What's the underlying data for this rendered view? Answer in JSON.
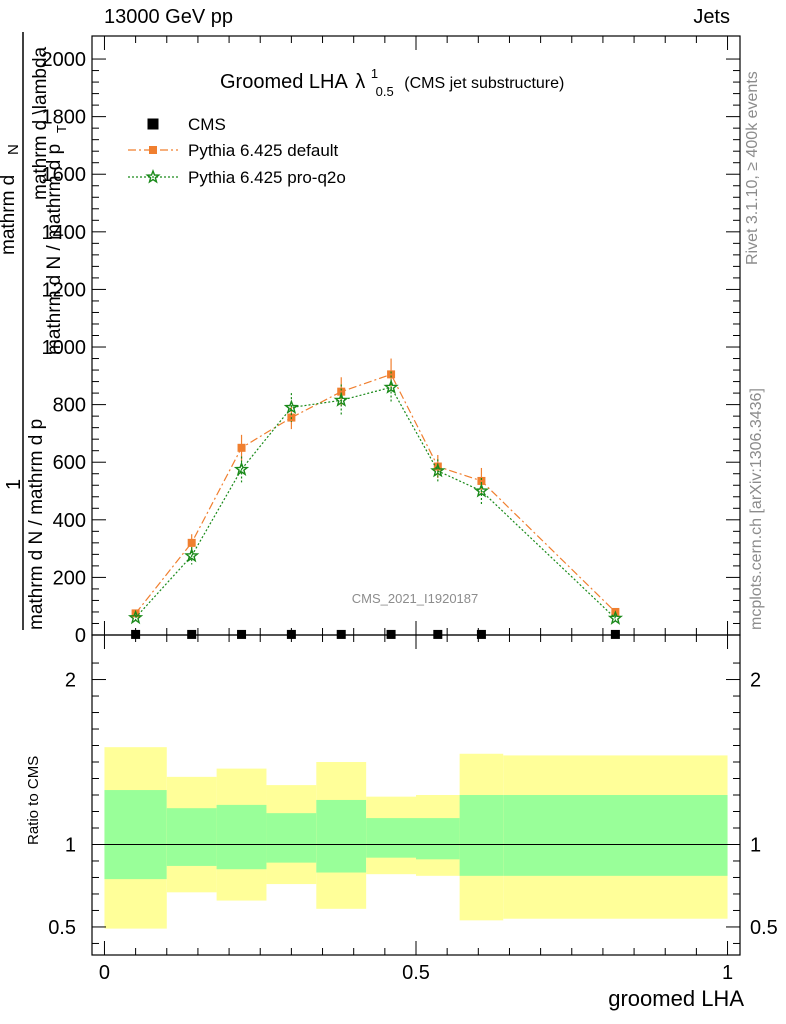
{
  "header": {
    "left": "13000 GeV pp",
    "right": "Jets"
  },
  "side_labels": {
    "rivet": "Rivet 3.1.10, ≥ 400k events",
    "mcplots": "mcplots.cern.ch [arXiv:1306.3436]"
  },
  "chart_data": [
    {
      "type": "scatter",
      "panel": "main",
      "title_main": "Groomed LHA",
      "title_lambda": "λ",
      "title_sup": "1",
      "title_sub": "0.5",
      "title_suffix": "(CMS jet substructure)",
      "watermark": "CMS_2021_I1920187",
      "ylabel_numerator": "1",
      "ylabel_fraction_top": "mathrm d",
      "ylabel_fraction_top2": "N",
      "ylabel_main": "mathrm d N / mathrm d p",
      "ylabel_sub": "T",
      "ylabel_tail": "mathrm d \\lambda",
      "ylabel_denominator": "mathrm d N / mathrm d p",
      "xlim": [
        -0.02,
        1.02
      ],
      "ylim": [
        0,
        2080
      ],
      "yticks": [
        0,
        200,
        400,
        600,
        800,
        1000,
        1200,
        1400,
        1600,
        1800,
        2000
      ],
      "ytick_labels": [
        "0",
        "200",
        "400",
        "600",
        "800",
        "1000",
        "1200",
        "1400",
        "1600",
        "1800",
        "2000"
      ],
      "legend_position": "top-left",
      "series": [
        {
          "name": "CMS",
          "color": "#000000",
          "marker": "square",
          "x": [
            0.05,
            0.14,
            0.22,
            0.3,
            0.38,
            0.46,
            0.535,
            0.605,
            0.82
          ],
          "y": [
            2,
            2,
            2,
            2,
            2,
            2,
            2,
            2,
            2
          ]
        },
        {
          "name": "Pythia 6.425 default",
          "color": "#f07f2f",
          "marker": "square",
          "line": "dashdot",
          "x": [
            0.05,
            0.14,
            0.22,
            0.3,
            0.38,
            0.46,
            0.535,
            0.605,
            0.82
          ],
          "y": [
            75,
            320,
            650,
            755,
            845,
            905,
            585,
            535,
            80
          ],
          "err": [
            10,
            30,
            45,
            40,
            50,
            55,
            40,
            45,
            10
          ]
        },
        {
          "name": "Pythia 6.425 pro-q2o",
          "color": "#1a8a1a",
          "marker": "star",
          "line": "dotted",
          "x": [
            0.05,
            0.14,
            0.22,
            0.3,
            0.38,
            0.46,
            0.535,
            0.605,
            0.82
          ],
          "y": [
            60,
            275,
            575,
            790,
            815,
            860,
            570,
            500,
            58
          ],
          "err": [
            10,
            30,
            45,
            50,
            55,
            55,
            40,
            45,
            10
          ]
        }
      ]
    },
    {
      "type": "area",
      "panel": "ratio",
      "ylabel": "Ratio to CMS",
      "xlabel": "groomed LHA",
      "xlim": [
        -0.02,
        1.02
      ],
      "ylim": [
        0.33,
        2.27
      ],
      "yticks": [
        0.5,
        1,
        2
      ],
      "ytick_labels": [
        "0.5",
        "1",
        "2"
      ],
      "xticks": [
        0,
        0.5,
        1
      ],
      "xtick_labels": [
        "0",
        "0.5",
        "1"
      ],
      "bins": [
        {
          "x0": 0.0,
          "x1": 0.1,
          "inner": [
            0.79,
            1.33
          ],
          "outer": [
            0.49,
            1.59
          ]
        },
        {
          "x0": 0.1,
          "x1": 0.18,
          "inner": [
            0.87,
            1.22
          ],
          "outer": [
            0.71,
            1.41
          ]
        },
        {
          "x0": 0.18,
          "x1": 0.26,
          "inner": [
            0.85,
            1.24
          ],
          "outer": [
            0.66,
            1.46
          ]
        },
        {
          "x0": 0.26,
          "x1": 0.34,
          "inner": [
            0.89,
            1.19
          ],
          "outer": [
            0.76,
            1.36
          ]
        },
        {
          "x0": 0.34,
          "x1": 0.42,
          "inner": [
            0.83,
            1.27
          ],
          "outer": [
            0.61,
            1.5
          ]
        },
        {
          "x0": 0.42,
          "x1": 0.5,
          "inner": [
            0.92,
            1.16
          ],
          "outer": [
            0.82,
            1.29
          ]
        },
        {
          "x0": 0.5,
          "x1": 0.57,
          "inner": [
            0.91,
            1.16
          ],
          "outer": [
            0.81,
            1.3
          ]
        },
        {
          "x0": 0.57,
          "x1": 0.64,
          "inner": [
            0.81,
            1.3
          ],
          "outer": [
            0.54,
            1.55
          ]
        },
        {
          "x0": 0.64,
          "x1": 1.0,
          "inner": [
            0.81,
            1.3
          ],
          "outer": [
            0.55,
            1.54
          ]
        }
      ]
    }
  ]
}
